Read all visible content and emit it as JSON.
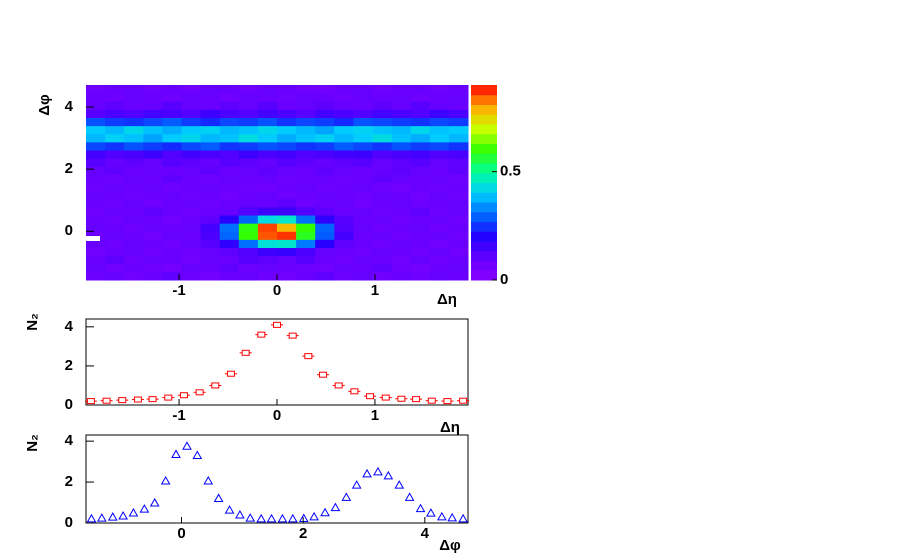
{
  "chart_data": [
    {
      "type": "heatmap",
      "x_label": "Δη",
      "y_label": "Δφ",
      "xlim": [
        -1.95,
        1.95
      ],
      "ylim": [
        -1.57,
        4.71
      ],
      "zlim": [
        0,
        0.9
      ],
      "xticks": [
        -1,
        0,
        1
      ],
      "yticks": [
        0,
        2,
        4
      ],
      "zticks": [
        0,
        0.5
      ],
      "palette": [
        "#8800ff",
        "#6600ff",
        "#2200ff",
        "#0066ff",
        "#00ccff",
        "#00ff99",
        "#33ff00",
        "#ccff00",
        "#ffaa00",
        "#ff0000"
      ],
      "z": [
        [
          0.08,
          0.1,
          0.07,
          0.09,
          0.11,
          0.08,
          0.06,
          0.09,
          0.1,
          0.08,
          0.07,
          0.09,
          0.11,
          0.08,
          0.1,
          0.07,
          0.09,
          0.08,
          0.1,
          0.09
        ],
        [
          0.1,
          0.07,
          0.09,
          0.08,
          0.06,
          0.1,
          0.09,
          0.11,
          0.08,
          0.1,
          0.09,
          0.08,
          0.07,
          0.1,
          0.09,
          0.11,
          0.08,
          0.06,
          0.09,
          0.1
        ],
        [
          0.09,
          0.11,
          0.08,
          0.1,
          0.09,
          0.07,
          0.1,
          0.09,
          0.12,
          0.11,
          0.1,
          0.12,
          0.09,
          0.08,
          0.1,
          0.09,
          0.07,
          0.1,
          0.08,
          0.09
        ],
        [
          0.07,
          0.09,
          0.1,
          0.08,
          0.09,
          0.08,
          0.1,
          0.11,
          0.13,
          0.16,
          0.17,
          0.14,
          0.1,
          0.09,
          0.08,
          0.1,
          0.09,
          0.08,
          0.1,
          0.07
        ],
        [
          0.09,
          0.08,
          0.1,
          0.09,
          0.08,
          0.1,
          0.12,
          0.18,
          0.31,
          0.44,
          0.45,
          0.32,
          0.19,
          0.11,
          0.09,
          0.08,
          0.1,
          0.09,
          0.07,
          0.09
        ],
        [
          0.08,
          0.1,
          0.09,
          0.07,
          0.1,
          0.09,
          0.14,
          0.3,
          0.6,
          0.85,
          0.87,
          0.58,
          0.29,
          0.15,
          0.09,
          0.1,
          0.08,
          0.09,
          0.1,
          0.08
        ],
        [
          0.1,
          0.09,
          0.08,
          0.1,
          0.09,
          0.1,
          0.15,
          0.31,
          0.59,
          0.86,
          0.78,
          0.6,
          0.3,
          0.13,
          0.1,
          0.08,
          0.09,
          0.1,
          0.08,
          0.09
        ],
        [
          0.09,
          0.08,
          0.1,
          0.09,
          0.07,
          0.09,
          0.11,
          0.19,
          0.3,
          0.43,
          0.45,
          0.31,
          0.18,
          0.12,
          0.09,
          0.1,
          0.08,
          0.09,
          0.1,
          0.08
        ],
        [
          0.08,
          0.1,
          0.09,
          0.11,
          0.09,
          0.08,
          0.09,
          0.1,
          0.13,
          0.16,
          0.16,
          0.13,
          0.11,
          0.09,
          0.1,
          0.08,
          0.09,
          0.11,
          0.08,
          0.1
        ],
        [
          0.09,
          0.08,
          0.1,
          0.07,
          0.09,
          0.1,
          0.08,
          0.09,
          0.1,
          0.09,
          0.11,
          0.08,
          0.09,
          0.1,
          0.07,
          0.09,
          0.1,
          0.08,
          0.09,
          0.1
        ],
        [
          0.1,
          0.09,
          0.08,
          0.09,
          0.1,
          0.08,
          0.09,
          0.07,
          0.09,
          0.1,
          0.08,
          0.09,
          0.1,
          0.09,
          0.08,
          0.1,
          0.09,
          0.07,
          0.1,
          0.08
        ],
        [
          0.08,
          0.1,
          0.09,
          0.1,
          0.08,
          0.09,
          0.1,
          0.09,
          0.08,
          0.07,
          0.09,
          0.1,
          0.08,
          0.09,
          0.1,
          0.08,
          0.07,
          0.09,
          0.08,
          0.09
        ],
        [
          0.09,
          0.08,
          0.1,
          0.09,
          0.11,
          0.09,
          0.08,
          0.1,
          0.09,
          0.1,
          0.08,
          0.09,
          0.1,
          0.08,
          0.09,
          0.11,
          0.1,
          0.09,
          0.1,
          0.08
        ],
        [
          0.1,
          0.11,
          0.09,
          0.1,
          0.09,
          0.1,
          0.11,
          0.09,
          0.1,
          0.11,
          0.1,
          0.09,
          0.11,
          0.1,
          0.09,
          0.1,
          0.11,
          0.1,
          0.09,
          0.11
        ],
        [
          0.12,
          0.1,
          0.11,
          0.1,
          0.12,
          0.11,
          0.1,
          0.12,
          0.11,
          0.1,
          0.12,
          0.11,
          0.1,
          0.11,
          0.12,
          0.1,
          0.11,
          0.12,
          0.1,
          0.11
        ],
        [
          0.15,
          0.13,
          0.14,
          0.16,
          0.13,
          0.15,
          0.14,
          0.13,
          0.16,
          0.14,
          0.15,
          0.13,
          0.14,
          0.15,
          0.16,
          0.13,
          0.14,
          0.15,
          0.13,
          0.14
        ],
        [
          0.27,
          0.25,
          0.28,
          0.26,
          0.24,
          0.27,
          0.29,
          0.25,
          0.26,
          0.28,
          0.27,
          0.25,
          0.26,
          0.29,
          0.27,
          0.25,
          0.28,
          0.26,
          0.27,
          0.25
        ],
        [
          0.38,
          0.41,
          0.39,
          0.36,
          0.4,
          0.42,
          0.38,
          0.39,
          0.43,
          0.4,
          0.37,
          0.39,
          0.41,
          0.38,
          0.4,
          0.43,
          0.39,
          0.37,
          0.4,
          0.38
        ],
        [
          0.4,
          0.38,
          0.42,
          0.39,
          0.37,
          0.4,
          0.41,
          0.38,
          0.39,
          0.42,
          0.4,
          0.38,
          0.36,
          0.4,
          0.41,
          0.39,
          0.38,
          0.42,
          0.39,
          0.4
        ],
        [
          0.28,
          0.26,
          0.25,
          0.27,
          0.29,
          0.26,
          0.24,
          0.27,
          0.26,
          0.28,
          0.25,
          0.27,
          0.26,
          0.24,
          0.28,
          0.27,
          0.26,
          0.25,
          0.27,
          0.26
        ],
        [
          0.12,
          0.14,
          0.13,
          0.15,
          0.14,
          0.13,
          0.16,
          0.14,
          0.13,
          0.15,
          0.14,
          0.12,
          0.15,
          0.14,
          0.13,
          0.15,
          0.14,
          0.13,
          0.16,
          0.14
        ],
        [
          0.1,
          0.11,
          0.09,
          0.1,
          0.12,
          0.1,
          0.09,
          0.11,
          0.1,
          0.12,
          0.09,
          0.1,
          0.11,
          0.1,
          0.09,
          0.11,
          0.1,
          0.12,
          0.1,
          0.09
        ],
        [
          0.09,
          0.08,
          0.1,
          0.09,
          0.08,
          0.1,
          0.09,
          0.07,
          0.1,
          0.09,
          0.08,
          0.1,
          0.09,
          0.08,
          0.1,
          0.09,
          0.1,
          0.08,
          0.09,
          0.1
        ],
        [
          0.08,
          0.09,
          0.1,
          0.08,
          0.09,
          0.07,
          0.1,
          0.09,
          0.08,
          0.1,
          0.09,
          0.08,
          0.07,
          0.09,
          0.1,
          0.08,
          0.09,
          0.1,
          0.08,
          0.09
        ]
      ]
    },
    {
      "type": "scatter",
      "x_label": "Δη",
      "y_label": "N₂",
      "marker": "square",
      "color": "#ff0000",
      "xlim": [
        -1.95,
        1.95
      ],
      "ylim": [
        0,
        4.4
      ],
      "xticks": [
        -1,
        0,
        1
      ],
      "yticks": [
        0,
        2,
        4
      ],
      "x": [
        -1.9,
        -1.74,
        -1.58,
        -1.42,
        -1.27,
        -1.11,
        -0.95,
        -0.79,
        -0.63,
        -0.47,
        -0.32,
        -0.16,
        0.0,
        0.16,
        0.32,
        0.47,
        0.63,
        0.79,
        0.95,
        1.11,
        1.27,
        1.42,
        1.58,
        1.74,
        1.9
      ],
      "values": [
        0.2,
        0.22,
        0.25,
        0.28,
        0.3,
        0.38,
        0.5,
        0.65,
        1.0,
        1.6,
        2.67,
        3.6,
        4.1,
        3.55,
        2.5,
        1.55,
        1.0,
        0.7,
        0.45,
        0.38,
        0.32,
        0.3,
        0.22,
        0.2,
        0.22
      ]
    },
    {
      "type": "scatter",
      "x_label": "Δφ",
      "y_label": "N₂",
      "marker": "triangle",
      "color": "#0000ff",
      "xlim": [
        -1.57,
        4.71
      ],
      "ylim": [
        0,
        4.3
      ],
      "xticks": [
        0,
        2,
        4
      ],
      "yticks": [
        0,
        2,
        4
      ],
      "x": [
        -1.48,
        -1.31,
        -1.13,
        -0.96,
        -0.79,
        -0.61,
        -0.44,
        -0.26,
        -0.09,
        0.09,
        0.26,
        0.44,
        0.61,
        0.79,
        0.96,
        1.13,
        1.31,
        1.48,
        1.66,
        1.83,
        2.01,
        2.18,
        2.36,
        2.53,
        2.71,
        2.88,
        3.05,
        3.23,
        3.4,
        3.58,
        3.75,
        3.93,
        4.1,
        4.28,
        4.45,
        4.63
      ],
      "values": [
        0.2,
        0.24,
        0.29,
        0.34,
        0.49,
        0.68,
        0.98,
        2.05,
        3.35,
        3.75,
        3.3,
        2.05,
        1.2,
        0.63,
        0.39,
        0.24,
        0.2,
        0.2,
        0.2,
        0.2,
        0.22,
        0.3,
        0.5,
        0.75,
        1.25,
        1.85,
        2.4,
        2.5,
        2.3,
        1.85,
        1.25,
        0.7,
        0.48,
        0.3,
        0.25,
        0.2
      ]
    }
  ]
}
